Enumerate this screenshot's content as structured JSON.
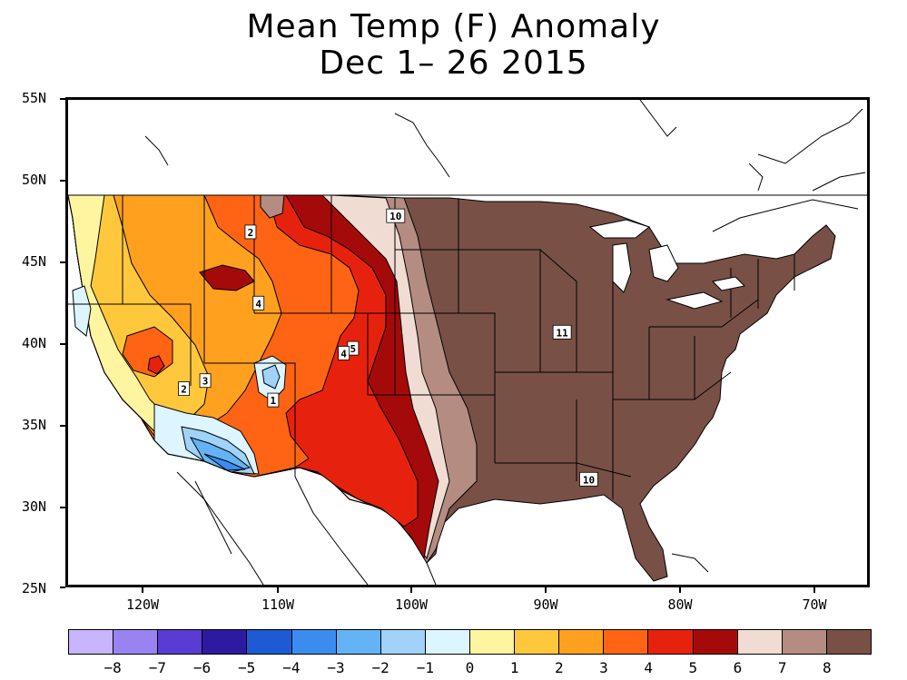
{
  "title": {
    "line1": "Mean Temp (F) Anomaly",
    "line2": "Dec 1– 26 2015"
  },
  "latitude_labels": [
    "55N",
    "50N",
    "45N",
    "40N",
    "35N",
    "30N",
    "25N"
  ],
  "longitude_labels": [
    "120W",
    "110W",
    "100W",
    "90W",
    "80W",
    "70W"
  ],
  "colorbar": {
    "colors": [
      "#c8b4ff",
      "#9a82f0",
      "#5a3cd2",
      "#2e1aa0",
      "#1e5ad2",
      "#3c8cf0",
      "#64b4f5",
      "#a0d2fa",
      "#dcf5ff",
      "#fff5a0",
      "#ffc83c",
      "#ffa01e",
      "#ff6414",
      "#e6220f",
      "#a50a0a",
      "#f0dcd2",
      "#b48c82",
      "#785046"
    ],
    "labels": [
      "−8",
      "−7",
      "−6",
      "−5",
      "−4",
      "−3",
      "−2",
      "−1",
      "0",
      "1",
      "2",
      "3",
      "4",
      "5",
      "6",
      "7",
      "8"
    ]
  },
  "contour_labels": [
    {
      "text": "10",
      "lon": -100.4,
      "lat": 47.8
    },
    {
      "text": "11",
      "lon": -87.9,
      "lat": 40.6
    },
    {
      "text": "10",
      "lon": -85.9,
      "lat": 31.5
    },
    {
      "text": "2",
      "lon": -111.3,
      "lat": 46.8
    },
    {
      "text": "4",
      "lon": -110.7,
      "lat": 42.4
    },
    {
      "text": "5",
      "lon": -103.6,
      "lat": 39.6
    },
    {
      "text": "4",
      "lon": -104.3,
      "lat": 39.3
    },
    {
      "text": "2",
      "lon": -116.3,
      "lat": 37.1
    },
    {
      "text": "3",
      "lon": -114.7,
      "lat": 37.6
    },
    {
      "text": "1",
      "lon": -109.6,
      "lat": 36.4
    }
  ]
}
